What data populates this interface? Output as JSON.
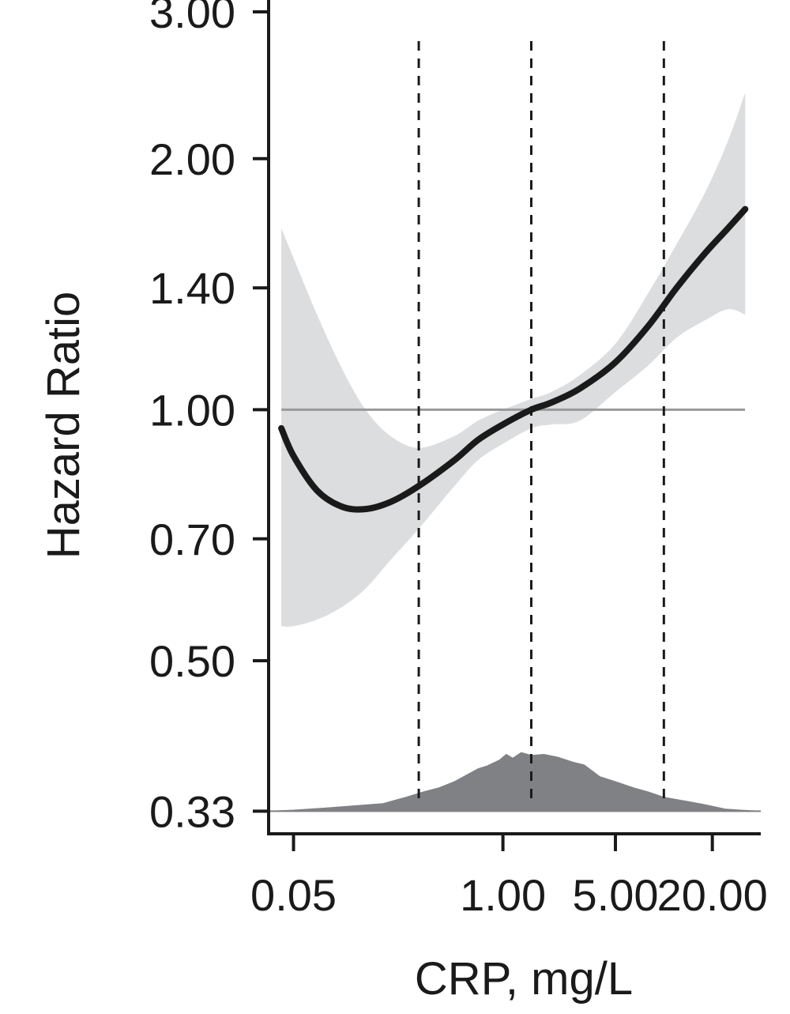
{
  "chart_data": {
    "type": "line",
    "title": "",
    "xlabel": "CRP, mg/L",
    "ylabel": "Hazard Ratio",
    "x_scale": "log",
    "y_scale": "log",
    "xlim": [
      0.035,
      40
    ],
    "ylim": [
      0.31,
      3.1
    ],
    "x_ticks": [
      {
        "value": 0.05,
        "label": "0.05"
      },
      {
        "value": 1.0,
        "label": "1.00"
      },
      {
        "value": 5.0,
        "label": "5.00"
      },
      {
        "value": 20.0,
        "label": "20.00"
      }
    ],
    "y_ticks": [
      {
        "value": 0.33,
        "label": "0.33"
      },
      {
        "value": 0.5,
        "label": "0.50"
      },
      {
        "value": 0.7,
        "label": "0.70"
      },
      {
        "value": 1.0,
        "label": "1.00"
      },
      {
        "value": 1.4,
        "label": "1.40"
      },
      {
        "value": 2.0,
        "label": "2.00"
      },
      {
        "value": 3.0,
        "label": "3.00"
      }
    ],
    "reference_line": {
      "y": 1.0,
      "color": "#999999"
    },
    "vertical_lines": [
      0.3,
      1.5,
      10.0
    ],
    "grid": false,
    "legend": "none",
    "series": [
      {
        "kind": "line",
        "color": "#1a1a1a",
        "points": [
          [
            0.042,
            0.95
          ],
          [
            0.05,
            0.88
          ],
          [
            0.07,
            0.8
          ],
          [
            0.1,
            0.765
          ],
          [
            0.14,
            0.76
          ],
          [
            0.2,
            0.775
          ],
          [
            0.3,
            0.81
          ],
          [
            0.5,
            0.87
          ],
          [
            0.7,
            0.92
          ],
          [
            1.0,
            0.96
          ],
          [
            1.5,
            1.0
          ],
          [
            2.0,
            1.02
          ],
          [
            3.0,
            1.06
          ],
          [
            5.0,
            1.14
          ],
          [
            8.0,
            1.26
          ],
          [
            12.0,
            1.4
          ],
          [
            18.0,
            1.54
          ],
          [
            25.0,
            1.65
          ],
          [
            32.0,
            1.74
          ]
        ]
      },
      {
        "kind": "band",
        "color": "#dcddde",
        "upper": [
          [
            0.042,
            1.65
          ],
          [
            0.05,
            1.52
          ],
          [
            0.07,
            1.3
          ],
          [
            0.1,
            1.12
          ],
          [
            0.14,
            1.0
          ],
          [
            0.2,
            0.93
          ],
          [
            0.3,
            0.9
          ],
          [
            0.5,
            0.93
          ],
          [
            0.7,
            0.97
          ],
          [
            1.0,
            1.0
          ],
          [
            1.5,
            1.03
          ],
          [
            2.0,
            1.05
          ],
          [
            3.0,
            1.1
          ],
          [
            5.0,
            1.2
          ],
          [
            8.0,
            1.38
          ],
          [
            12.0,
            1.58
          ],
          [
            18.0,
            1.82
          ],
          [
            25.0,
            2.1
          ],
          [
            32.0,
            2.4
          ]
        ],
        "lower": [
          [
            0.042,
            0.55
          ],
          [
            0.05,
            0.55
          ],
          [
            0.07,
            0.56
          ],
          [
            0.1,
            0.58
          ],
          [
            0.14,
            0.61
          ],
          [
            0.2,
            0.66
          ],
          [
            0.3,
            0.72
          ],
          [
            0.5,
            0.81
          ],
          [
            0.7,
            0.87
          ],
          [
            1.0,
            0.91
          ],
          [
            1.5,
            0.95
          ],
          [
            2.0,
            0.96
          ],
          [
            3.0,
            0.97
          ],
          [
            5.0,
            1.05
          ],
          [
            8.0,
            1.13
          ],
          [
            12.0,
            1.22
          ],
          [
            18.0,
            1.28
          ],
          [
            25.0,
            1.32
          ],
          [
            32.0,
            1.3
          ]
        ]
      },
      {
        "kind": "density",
        "color": "#808184",
        "baseline": 0.33,
        "points": [
          [
            0.035,
            0.33
          ],
          [
            0.05,
            0.331
          ],
          [
            0.08,
            0.333
          ],
          [
            0.12,
            0.335
          ],
          [
            0.18,
            0.337
          ],
          [
            0.25,
            0.343
          ],
          [
            0.32,
            0.348
          ],
          [
            0.4,
            0.352
          ],
          [
            0.5,
            0.358
          ],
          [
            0.6,
            0.365
          ],
          [
            0.7,
            0.371
          ],
          [
            0.8,
            0.374
          ],
          [
            0.95,
            0.38
          ],
          [
            1.05,
            0.386
          ],
          [
            1.15,
            0.382
          ],
          [
            1.3,
            0.388
          ],
          [
            1.5,
            0.385
          ],
          [
            1.8,
            0.386
          ],
          [
            2.2,
            0.383
          ],
          [
            2.7,
            0.378
          ],
          [
            3.2,
            0.375
          ],
          [
            4.0,
            0.363
          ],
          [
            5.0,
            0.358
          ],
          [
            6.5,
            0.352
          ],
          [
            8.0,
            0.348
          ],
          [
            10.0,
            0.343
          ],
          [
            14.0,
            0.339
          ],
          [
            18.0,
            0.336
          ],
          [
            24.0,
            0.332
          ],
          [
            30.0,
            0.331
          ],
          [
            40.0,
            0.33
          ]
        ]
      }
    ]
  }
}
